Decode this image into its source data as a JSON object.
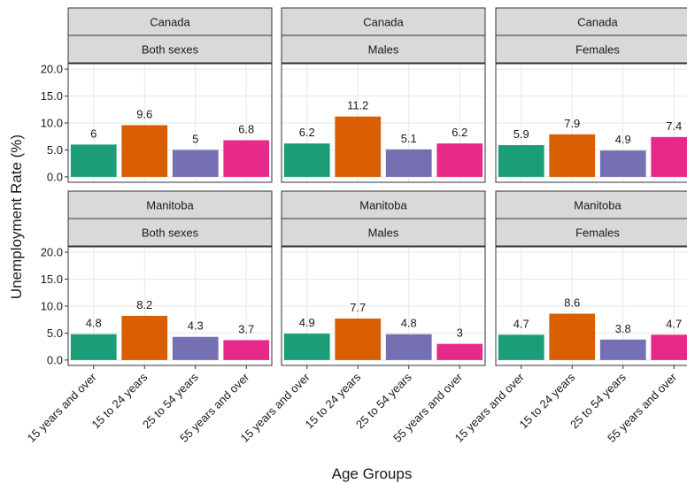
{
  "chart_data": {
    "type": "bar",
    "categories": [
      "15 years and over",
      "15 to 24 years",
      "25 to 54 years",
      "55 years and over"
    ],
    "colors": [
      "#1b9e77",
      "#d95f02",
      "#7570b3",
      "#e7298a"
    ],
    "ylim": [
      -1,
      21
    ],
    "yticks": [
      {
        "value": 0,
        "label": "0.0"
      },
      {
        "value": 5,
        "label": "5.0"
      },
      {
        "value": 10,
        "label": "10.0"
      },
      {
        "value": 15,
        "label": "15.0"
      },
      {
        "value": 20,
        "label": "20.0"
      }
    ],
    "grid": true,
    "xlabel": "Age Groups",
    "ylabel": "Unemployment Rate (%)",
    "panels": [
      {
        "strip": [
          "Canada",
          "Both sexes"
        ],
        "values": [
          6,
          9.6,
          5,
          6.8
        ]
      },
      {
        "strip": [
          "Canada",
          "Males"
        ],
        "values": [
          6.2,
          11.2,
          5.1,
          6.2
        ]
      },
      {
        "strip": [
          "Canada",
          "Females"
        ],
        "values": [
          5.9,
          7.9,
          4.9,
          7.4
        ]
      },
      {
        "strip": [
          "Manitoba",
          "Both sexes"
        ],
        "values": [
          4.8,
          8.2,
          4.3,
          3.7
        ]
      },
      {
        "strip": [
          "Manitoba",
          "Males"
        ],
        "values": [
          4.9,
          7.7,
          4.8,
          3
        ]
      },
      {
        "strip": [
          "Manitoba",
          "Females"
        ],
        "values": [
          4.7,
          8.6,
          3.8,
          4.7
        ]
      }
    ]
  }
}
